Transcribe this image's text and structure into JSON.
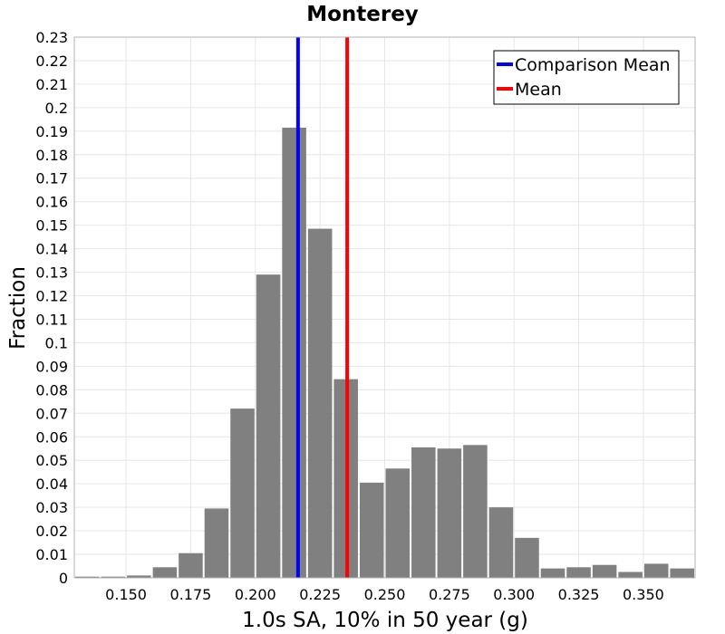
{
  "chart_data": {
    "type": "bar",
    "title": "Monterey",
    "xlabel": "1.0s SA, 10% in 50 year (g)",
    "ylabel": "Fraction",
    "xlim": [
      0.13,
      0.37
    ],
    "ylim": [
      0,
      0.23
    ],
    "bin_width": 0.01,
    "x_ticks": [
      "0.150",
      "0.175",
      "0.200",
      "0.225",
      "0.250",
      "0.275",
      "0.300",
      "0.325",
      "0.350"
    ],
    "y_ticks": [
      "0",
      "0.01",
      "0.02",
      "0.03",
      "0.04",
      "0.05",
      "0.06",
      "0.07",
      "0.08",
      "0.09",
      "0.1",
      "0.11",
      "0.12",
      "0.13",
      "0.14",
      "0.15",
      "0.16",
      "0.17",
      "0.18",
      "0.19",
      "0.2",
      "0.21",
      "0.22",
      "0.23"
    ],
    "bar_color": "#808080",
    "bins": [
      {
        "x": 0.135,
        "value": 0.0005
      },
      {
        "x": 0.145,
        "value": 0.0005
      },
      {
        "x": 0.155,
        "value": 0.001
      },
      {
        "x": 0.165,
        "value": 0.0045
      },
      {
        "x": 0.175,
        "value": 0.0105
      },
      {
        "x": 0.185,
        "value": 0.0295
      },
      {
        "x": 0.195,
        "value": 0.072
      },
      {
        "x": 0.205,
        "value": 0.129
      },
      {
        "x": 0.215,
        "value": 0.1915
      },
      {
        "x": 0.225,
        "value": 0.1485
      },
      {
        "x": 0.235,
        "value": 0.0845
      },
      {
        "x": 0.245,
        "value": 0.0405
      },
      {
        "x": 0.255,
        "value": 0.0465
      },
      {
        "x": 0.265,
        "value": 0.0555
      },
      {
        "x": 0.275,
        "value": 0.055
      },
      {
        "x": 0.285,
        "value": 0.0565
      },
      {
        "x": 0.295,
        "value": 0.03
      },
      {
        "x": 0.305,
        "value": 0.017
      },
      {
        "x": 0.315,
        "value": 0.004
      },
      {
        "x": 0.325,
        "value": 0.0045
      },
      {
        "x": 0.335,
        "value": 0.0055
      },
      {
        "x": 0.345,
        "value": 0.0025
      },
      {
        "x": 0.355,
        "value": 0.006
      },
      {
        "x": 0.365,
        "value": 0.004
      }
    ],
    "vlines": [
      {
        "name": "Comparison Mean",
        "x": 0.2165,
        "color": "#0000ff"
      },
      {
        "name": "Mean",
        "x": 0.2355,
        "color": "#ff0000"
      }
    ],
    "legend": {
      "placement": "top-right",
      "entries": [
        {
          "label": "Comparison Mean",
          "color": "#0000ff"
        },
        {
          "label": "Mean",
          "color": "#ff0000"
        }
      ]
    },
    "grid": true
  }
}
